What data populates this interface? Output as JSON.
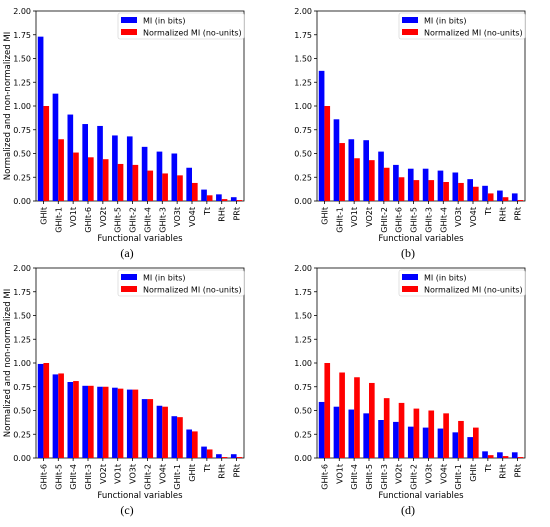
{
  "legend": {
    "mi_label": "MI (in bits)",
    "nmi_label": "Normalized MI (no-units)"
  },
  "colors": {
    "mi": "#0000ff",
    "nmi": "#ff0000"
  },
  "chart_data": [
    {
      "panel": "(a)",
      "type": "bar",
      "ylabel": "Normalized and non-normalized MI",
      "xlabel": "Functional variables",
      "ylim": [
        0,
        2.0
      ],
      "yticks": [
        "0.00",
        "0.25",
        "0.50",
        "0.75",
        "1.00",
        "1.25",
        "1.50",
        "1.75",
        "2.00"
      ],
      "legend_position": "top-right",
      "categories": [
        "GHIt",
        "GHIt-1",
        "VO1t",
        "GHIt-6",
        "VO2t",
        "GHIt-5",
        "GHIt-2",
        "GHIt-4",
        "GHIt-3",
        "VO3t",
        "VO4t",
        "Tt",
        "RHt",
        "PRt"
      ],
      "series": [
        {
          "name": "MI (in bits)",
          "values": [
            1.73,
            1.13,
            0.91,
            0.81,
            0.79,
            0.69,
            0.68,
            0.57,
            0.52,
            0.5,
            0.35,
            0.12,
            0.07,
            0.04
          ]
        },
        {
          "name": "Normalized MI (no-units)",
          "values": [
            1.0,
            0.65,
            0.51,
            0.46,
            0.44,
            0.39,
            0.38,
            0.32,
            0.29,
            0.27,
            0.19,
            0.06,
            0.02,
            0.01
          ]
        }
      ]
    },
    {
      "panel": "(b)",
      "type": "bar",
      "ylabel": "",
      "xlabel": "Functional variables",
      "ylim": [
        0,
        2.0
      ],
      "yticks": [
        "0.00",
        "0.25",
        "0.50",
        "0.75",
        "1.00",
        "1.25",
        "1.50",
        "1.75",
        "2.00"
      ],
      "legend_position": "top-right",
      "categories": [
        "GHIt",
        "GHIt-1",
        "VO1t",
        "VO2t",
        "GHIt-2",
        "GHIt-6",
        "GHIt-5",
        "GHIt-3",
        "GHIt-4",
        "VO3t",
        "VO4t",
        "Tt",
        "RHt",
        "PRt"
      ],
      "series": [
        {
          "name": "MI (in bits)",
          "values": [
            1.37,
            0.86,
            0.65,
            0.64,
            0.52,
            0.38,
            0.34,
            0.34,
            0.32,
            0.3,
            0.23,
            0.16,
            0.11,
            0.08
          ]
        },
        {
          "name": "Normalized MI (no-units)",
          "values": [
            1.0,
            0.61,
            0.45,
            0.43,
            0.35,
            0.25,
            0.22,
            0.22,
            0.2,
            0.19,
            0.15,
            0.08,
            0.04,
            0.01
          ]
        }
      ]
    },
    {
      "panel": "(c)",
      "type": "bar",
      "ylabel": "Normalized and non-normalized MI",
      "xlabel": "Functional variables",
      "ylim": [
        0,
        2.0
      ],
      "yticks": [
        "0.00",
        "0.25",
        "0.50",
        "0.75",
        "1.00",
        "1.25",
        "1.50",
        "1.75",
        "2.00"
      ],
      "legend_position": "top-right",
      "categories": [
        "GHIt-6",
        "GHIt-5",
        "GHIt-4",
        "GHIt-3",
        "VO2t",
        "VO1t",
        "VO3t",
        "GHIt-2",
        "VO4t",
        "GHIt-1",
        "GHIt",
        "Tt",
        "RHt",
        "PRt"
      ],
      "series": [
        {
          "name": "MI (in bits)",
          "values": [
            0.99,
            0.88,
            0.8,
            0.76,
            0.75,
            0.74,
            0.72,
            0.62,
            0.55,
            0.44,
            0.3,
            0.12,
            0.04,
            0.04
          ]
        },
        {
          "name": "Normalized MI (no-units)",
          "values": [
            1.0,
            0.89,
            0.81,
            0.76,
            0.75,
            0.73,
            0.72,
            0.62,
            0.54,
            0.43,
            0.28,
            0.09,
            0.01,
            0.01
          ]
        }
      ]
    },
    {
      "panel": "(d)",
      "type": "bar",
      "ylabel": "",
      "xlabel": "Functional variables",
      "ylim": [
        0,
        2.0
      ],
      "yticks": [
        "0.00",
        "0.25",
        "0.50",
        "0.75",
        "1.00",
        "1.25",
        "1.50",
        "1.75",
        "2.00"
      ],
      "legend_position": "top-right",
      "categories": [
        "GHIt-6",
        "VO1t",
        "GHIt-4",
        "GHIt-5",
        "GHIt-3",
        "VO2t",
        "GHIt-2",
        "VO3t",
        "VO4t",
        "GHIt-1",
        "GHIt",
        "Tt",
        "RHt",
        "PRt"
      ],
      "series": [
        {
          "name": "MI (in bits)",
          "values": [
            0.59,
            0.54,
            0.51,
            0.47,
            0.4,
            0.38,
            0.33,
            0.32,
            0.31,
            0.27,
            0.22,
            0.07,
            0.06,
            0.06
          ]
        },
        {
          "name": "Normalized MI (no-units)",
          "values": [
            1.0,
            0.9,
            0.85,
            0.79,
            0.63,
            0.58,
            0.52,
            0.5,
            0.47,
            0.39,
            0.32,
            0.03,
            0.02,
            0.01
          ]
        }
      ]
    }
  ]
}
